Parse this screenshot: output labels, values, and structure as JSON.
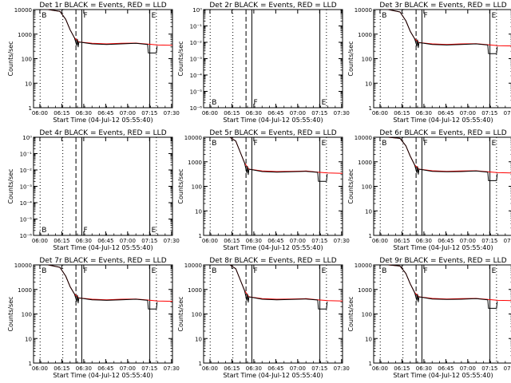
{
  "colors": {
    "events": "#000000",
    "lld": "#ff0000",
    "background": "#ffffff"
  },
  "x_tick_labels": [
    "06:00",
    "06:15",
    "06:30",
    "06:45",
    "07:00",
    "07:15",
    "07:30"
  ],
  "xlabel": "Start Time (04-Jul-12 05:55:40)",
  "ylabel": "Counts/sec",
  "markers": [
    {
      "label": "B",
      "time_min": 4.5,
      "style": "dotted"
    },
    {
      "label": "F",
      "time_min": 33,
      "style": "solid"
    },
    {
      "label": "E",
      "time_min": 79.5,
      "style": "solid"
    }
  ],
  "extra_lines": [
    {
      "time_min": 20,
      "style": "dotted"
    },
    {
      "time_min": 29,
      "style": "dashed"
    },
    {
      "time_min": 84,
      "style": "dotted"
    }
  ],
  "chart_data": [
    {
      "type": "line",
      "title": "Det 1r BLACK = Events, RED = LLD",
      "empty": false,
      "x_range_min": [
        0,
        95
      ],
      "x_ticks_min": [
        4.33,
        19.33,
        34.33,
        49.33,
        64.33,
        79.33,
        94.33
      ],
      "ylog": true,
      "ylim": [
        1,
        10000
      ],
      "y_tick_labels": [
        "1",
        "10",
        "100",
        "1000",
        "10000"
      ],
      "y_tick_values": [
        1,
        10,
        100,
        1000,
        10000
      ],
      "series": [
        {
          "color": "red",
          "x": [
            0,
            10,
            18,
            22,
            25,
            28,
            31,
            40,
            50,
            60,
            70,
            78,
            85,
            95
          ],
          "y": [
            10000,
            10000,
            8500,
            4000,
            1500,
            700,
            480,
            420,
            400,
            420,
            430,
            390,
            360,
            350
          ]
        },
        {
          "color": "black",
          "x": [
            0,
            10,
            18,
            22,
            25,
            28,
            29.5,
            30,
            30.5,
            31,
            40,
            50,
            60,
            70,
            78,
            78.5,
            84,
            84.5
          ],
          "y": [
            10000,
            10000,
            8500,
            4000,
            1500,
            700,
            350,
            620,
            300,
            480,
            400,
            380,
            400,
            420,
            380,
            170,
            170,
            330
          ]
        }
      ]
    },
    {
      "type": "line",
      "title": "Det 2r BLACK = Events, RED = LLD",
      "empty": true,
      "x_range_min": [
        0,
        95
      ],
      "x_ticks_min": [
        4.33,
        19.33,
        34.33,
        49.33,
        64.33,
        79.33,
        94.33
      ],
      "ylog": true,
      "ylim": [
        1e-06,
        1.0000001
      ],
      "y_tick_labels": [
        "10⁻⁶",
        "10⁻⁵",
        "10⁻⁴",
        "10⁻³",
        "10⁻²",
        "10⁻¹",
        "10⁰"
      ],
      "y_tick_values": [
        1e-06,
        1e-05,
        0.0001,
        0.001,
        0.01,
        0.1,
        1
      ],
      "series": []
    },
    {
      "type": "line",
      "title": "Det 3r BLACK = Events, RED = LLD",
      "empty": false,
      "x_range_min": [
        0,
        95
      ],
      "x_ticks_min": [
        4.33,
        19.33,
        34.33,
        49.33,
        64.33,
        79.33,
        94.33
      ],
      "ylog": true,
      "ylim": [
        1,
        10000
      ],
      "y_tick_labels": [
        "1",
        "10",
        "100",
        "1000",
        "10000"
      ],
      "y_tick_values": [
        1,
        10,
        100,
        1000,
        10000
      ],
      "series": [
        {
          "color": "red",
          "x": [
            0,
            10,
            18,
            22,
            25,
            28,
            31,
            40,
            50,
            60,
            70,
            78,
            85,
            95
          ],
          "y": [
            10000,
            10000,
            8000,
            3500,
            1300,
            650,
            450,
            400,
            380,
            400,
            410,
            370,
            340,
            330
          ]
        },
        {
          "color": "black",
          "x": [
            0,
            10,
            18,
            22,
            25,
            28,
            29.5,
            30,
            30.5,
            31,
            40,
            50,
            60,
            70,
            78,
            78.5,
            84,
            84.5
          ],
          "y": [
            10000,
            10000,
            8000,
            3500,
            1300,
            650,
            330,
            580,
            280,
            450,
            380,
            360,
            380,
            400,
            360,
            160,
            160,
            310
          ]
        }
      ]
    },
    {
      "type": "line",
      "title": "Det 4r BLACK = Events, RED = LLD",
      "empty": true,
      "x_range_min": [
        0,
        95
      ],
      "x_ticks_min": [
        4.33,
        19.33,
        34.33,
        49.33,
        64.33,
        79.33,
        94.33
      ],
      "ylog": true,
      "ylim": [
        1e-06,
        1.0000001
      ],
      "y_tick_labels": [
        "10⁻⁶",
        "10⁻⁵",
        "10⁻⁴",
        "10⁻³",
        "10⁻²",
        "10⁻¹",
        "10⁰"
      ],
      "y_tick_values": [
        1e-06,
        1e-05,
        0.0001,
        0.001,
        0.01,
        0.1,
        1
      ],
      "series": []
    },
    {
      "type": "line",
      "title": "Det 5r BLACK = Events, RED = LLD",
      "empty": false,
      "x_range_min": [
        0,
        95
      ],
      "x_ticks_min": [
        4.33,
        19.33,
        34.33,
        49.33,
        64.33,
        79.33,
        94.33
      ],
      "ylog": true,
      "ylim": [
        1,
        10000
      ],
      "y_tick_labels": [
        "1",
        "10",
        "100",
        "1000",
        "10000"
      ],
      "y_tick_values": [
        1,
        10,
        100,
        1000,
        10000
      ],
      "series": [
        {
          "color": "red",
          "x": [
            0,
            10,
            18,
            22,
            25,
            28,
            31,
            40,
            50,
            60,
            70,
            78,
            85,
            95
          ],
          "y": [
            10000,
            10000,
            10000,
            7000,
            2500,
            900,
            500,
            420,
            400,
            410,
            420,
            380,
            350,
            340
          ]
        },
        {
          "color": "black",
          "x": [
            0,
            10,
            18,
            22,
            25,
            28,
            29.5,
            30,
            30.5,
            31,
            40,
            50,
            60,
            70,
            78,
            78.5,
            84,
            84.5
          ],
          "y": [
            10000,
            10000,
            10000,
            7000,
            2500,
            900,
            360,
            650,
            300,
            500,
            400,
            380,
            390,
            410,
            370,
            160,
            160,
            320
          ]
        }
      ]
    },
    {
      "type": "line",
      "title": "Det 6r BLACK = Events, RED = LLD",
      "empty": false,
      "x_range_min": [
        0,
        95
      ],
      "x_ticks_min": [
        4.33,
        19.33,
        34.33,
        49.33,
        64.33,
        79.33,
        94.33
      ],
      "ylog": true,
      "ylim": [
        1,
        10000
      ],
      "y_tick_labels": [
        "1",
        "10",
        "100",
        "1000",
        "10000"
      ],
      "y_tick_values": [
        1,
        10,
        100,
        1000,
        10000
      ],
      "series": [
        {
          "color": "red",
          "x": [
            0,
            10,
            18,
            22,
            25,
            28,
            31,
            40,
            50,
            60,
            70,
            78,
            85,
            95
          ],
          "y": [
            10000,
            10000,
            9000,
            4500,
            1700,
            750,
            500,
            430,
            410,
            420,
            430,
            390,
            360,
            350
          ]
        },
        {
          "color": "black",
          "x": [
            0,
            10,
            18,
            22,
            25,
            28,
            29.5,
            30,
            30.5,
            31,
            40,
            50,
            60,
            70,
            78,
            78.5,
            84,
            84.5
          ],
          "y": [
            10000,
            10000,
            9000,
            4500,
            1700,
            750,
            360,
            640,
            310,
            500,
            410,
            390,
            400,
            420,
            380,
            170,
            170,
            330
          ]
        }
      ]
    },
    {
      "type": "line",
      "title": "Det 7r BLACK = Events, RED = LLD",
      "empty": false,
      "x_range_min": [
        0,
        95
      ],
      "x_ticks_min": [
        4.33,
        19.33,
        34.33,
        49.33,
        64.33,
        79.33,
        94.33
      ],
      "ylog": true,
      "ylim": [
        1,
        10000
      ],
      "y_tick_labels": [
        "1",
        "10",
        "100",
        "1000",
        "10000"
      ],
      "y_tick_values": [
        1,
        10,
        100,
        1000,
        10000
      ],
      "series": [
        {
          "color": "red",
          "x": [
            0,
            10,
            18,
            22,
            25,
            28,
            31,
            40,
            50,
            60,
            70,
            78,
            85,
            95
          ],
          "y": [
            10000,
            10000,
            8000,
            3500,
            1300,
            650,
            450,
            400,
            380,
            400,
            410,
            370,
            340,
            330
          ]
        },
        {
          "color": "black",
          "x": [
            0,
            10,
            18,
            22,
            25,
            28,
            29.5,
            30,
            30.5,
            31,
            40,
            50,
            60,
            70,
            78,
            78.5,
            84,
            84.5
          ],
          "y": [
            10000,
            10000,
            8000,
            3500,
            1300,
            650,
            330,
            580,
            280,
            450,
            380,
            360,
            380,
            400,
            360,
            160,
            160,
            310
          ]
        }
      ]
    },
    {
      "type": "line",
      "title": "Det 8r BLACK = Events, RED = LLD",
      "empty": false,
      "x_range_min": [
        0,
        95
      ],
      "x_ticks_min": [
        4.33,
        19.33,
        34.33,
        49.33,
        64.33,
        79.33,
        94.33
      ],
      "ylog": true,
      "ylim": [
        1,
        10000
      ],
      "y_tick_labels": [
        "1",
        "10",
        "100",
        "1000",
        "10000"
      ],
      "y_tick_values": [
        1,
        10,
        100,
        1000,
        10000
      ],
      "series": [
        {
          "color": "red",
          "x": [
            0,
            10,
            18,
            22,
            25,
            28,
            31,
            40,
            50,
            60,
            70,
            78,
            85,
            95
          ],
          "y": [
            10000,
            10000,
            10000,
            7000,
            2500,
            900,
            500,
            420,
            400,
            410,
            420,
            380,
            350,
            340
          ]
        },
        {
          "color": "black",
          "x": [
            0,
            10,
            18,
            22,
            25,
            28,
            29.5,
            30,
            30.5,
            31,
            40,
            50,
            60,
            70,
            78,
            78.5,
            84,
            84.5
          ],
          "y": [
            10000,
            10000,
            10000,
            7000,
            2500,
            900,
            360,
            650,
            300,
            500,
            400,
            380,
            390,
            410,
            370,
            160,
            160,
            320
          ]
        }
      ]
    },
    {
      "type": "line",
      "title": "Det 9r BLACK = Events, RED = LLD",
      "empty": false,
      "x_range_min": [
        0,
        95
      ],
      "x_ticks_min": [
        4.33,
        19.33,
        34.33,
        49.33,
        64.33,
        79.33,
        94.33
      ],
      "ylog": true,
      "ylim": [
        1,
        10000
      ],
      "y_tick_labels": [
        "1",
        "10",
        "100",
        "1000",
        "10000"
      ],
      "y_tick_values": [
        1,
        10,
        100,
        1000,
        10000
      ],
      "series": [
        {
          "color": "red",
          "x": [
            0,
            10,
            18,
            22,
            25,
            28,
            31,
            40,
            50,
            60,
            70,
            78,
            85,
            95
          ],
          "y": [
            10000,
            10000,
            9000,
            4500,
            1700,
            750,
            500,
            430,
            410,
            420,
            430,
            390,
            360,
            350
          ]
        },
        {
          "color": "black",
          "x": [
            0,
            10,
            18,
            22,
            25,
            28,
            29.5,
            30,
            30.5,
            31,
            40,
            50,
            60,
            70,
            78,
            78.5,
            84,
            84.5
          ],
          "y": [
            10000,
            10000,
            9000,
            4500,
            1700,
            750,
            360,
            640,
            310,
            500,
            410,
            390,
            400,
            420,
            380,
            170,
            170,
            330
          ]
        }
      ]
    }
  ]
}
